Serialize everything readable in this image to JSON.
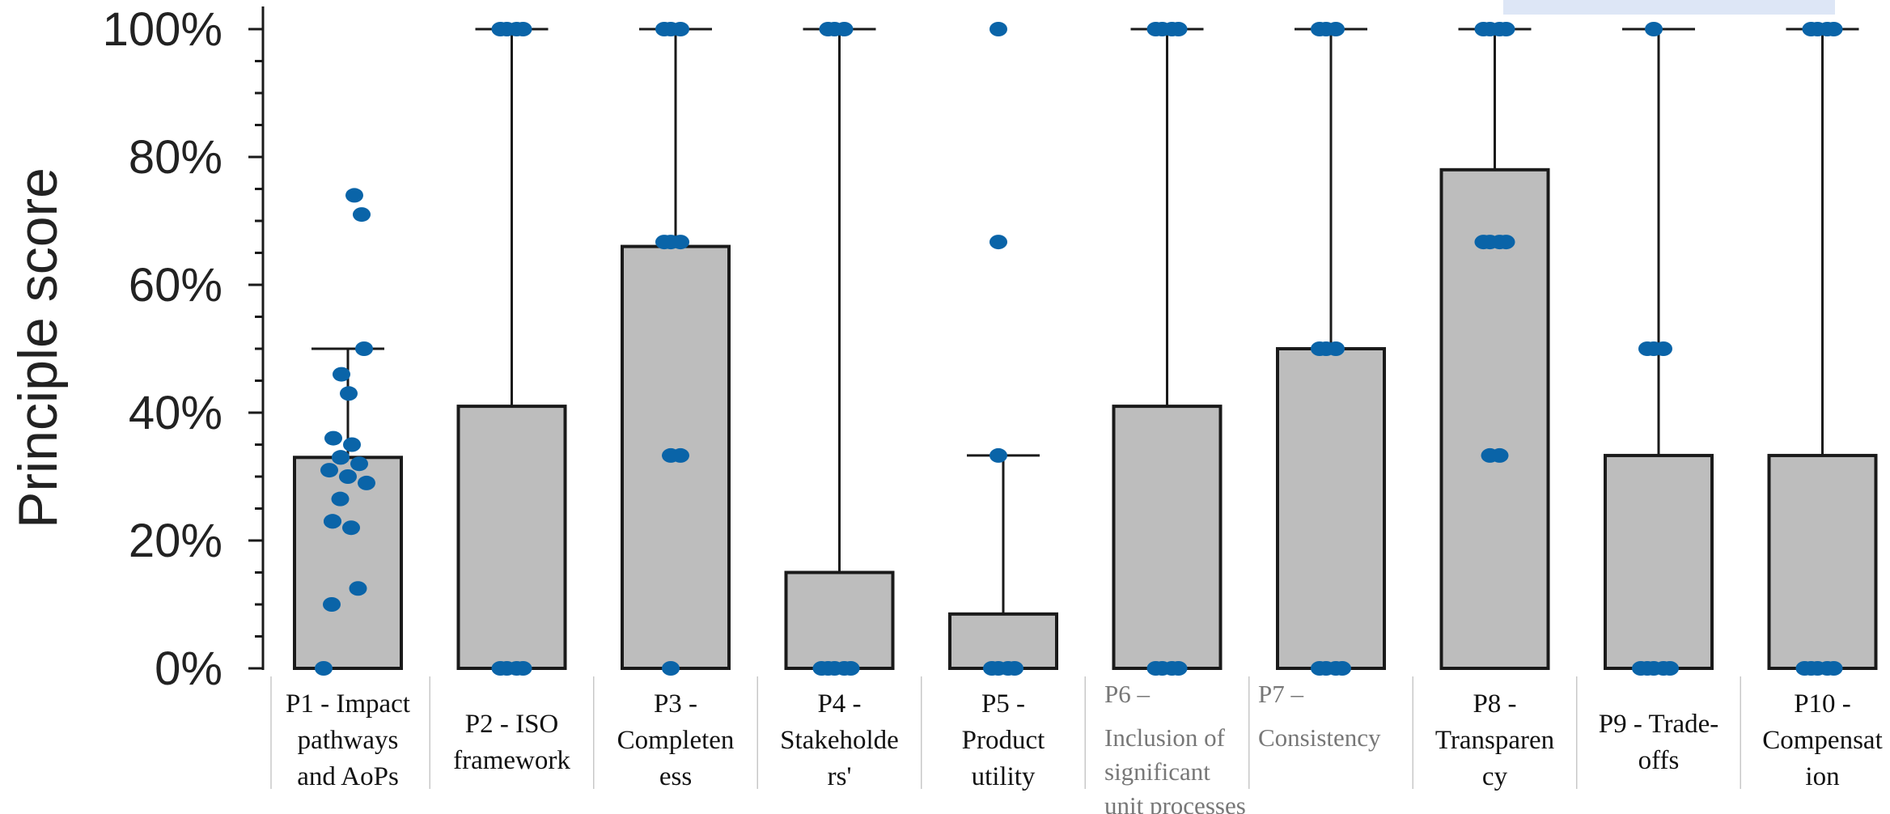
{
  "chart_data": {
    "type": "box",
    "ylabel": "Principle score",
    "yticks": [
      "0%",
      "20%",
      "40%",
      "60%",
      "80%",
      "100%"
    ],
    "ylim": [
      0,
      100
    ],
    "colors": {
      "box_fill": "#bdbdbd",
      "points": "#0a64a8",
      "highlight": "#dde6f6"
    },
    "categories": [
      {
        "lines": [
          "P1 - Impact",
          "pathways",
          "and AoPs"
        ],
        "muted": false,
        "bar": 33,
        "whisker": 50,
        "points": [
          0,
          10,
          12.5,
          22,
          23,
          23,
          26.5,
          29,
          30,
          31,
          32,
          33,
          33,
          35,
          36,
          43,
          46,
          50,
          71,
          74
        ]
      },
      {
        "lines": [
          "P2 - ISO",
          "framework"
        ],
        "muted": false,
        "bar": 41,
        "whisker": 100,
        "points": [
          0,
          0,
          0,
          0,
          100,
          100,
          100,
          100
        ]
      },
      {
        "lines": [
          "P3 -",
          "Completen",
          "ess"
        ],
        "muted": false,
        "bar": 66,
        "whisker": 100,
        "points": [
          0,
          33.3,
          33.3,
          66.7,
          66.7,
          66.7,
          100,
          100,
          100
        ]
      },
      {
        "lines": [
          "P4 -",
          "Stakeholde",
          "rs'"
        ],
        "muted": false,
        "bar": 15,
        "whisker": 100,
        "points": [
          0,
          0,
          0,
          0,
          0,
          100,
          100,
          100
        ]
      },
      {
        "lines": [
          "P5 -",
          "Product",
          "utility"
        ],
        "muted": false,
        "bar": 8.5,
        "whisker": 33.3,
        "points": [
          0,
          0,
          0,
          0,
          33.3,
          66.7,
          100
        ]
      },
      {
        "lines": [
          "P6 –",
          "Inclusion of",
          "significant",
          "unit processes"
        ],
        "muted": true,
        "bar": 41,
        "whisker": 100,
        "points": [
          0,
          0,
          0,
          0,
          100,
          100,
          100,
          100
        ]
      },
      {
        "lines": [
          "P7 –",
          "Consistency"
        ],
        "muted": true,
        "bar": 50,
        "whisker": 100,
        "points": [
          0,
          0,
          0,
          0,
          50,
          50,
          50,
          100,
          100,
          100
        ]
      },
      {
        "lines": [
          "P8 -",
          "Transparen",
          "cy"
        ],
        "muted": false,
        "bar": 78,
        "whisker": 100,
        "points": [
          33.3,
          33.3,
          66.7,
          66.7,
          66.7,
          66.7,
          100,
          100,
          100,
          100
        ]
      },
      {
        "lines": [
          "P9 - Trade-",
          "offs"
        ],
        "muted": false,
        "bar": 33.3,
        "whisker": 100,
        "points": [
          0,
          0,
          0,
          0,
          0,
          50,
          50,
          50,
          100
        ]
      },
      {
        "lines": [
          "P10 -",
          "Compensat",
          "ion"
        ],
        "muted": false,
        "bar": 33.3,
        "whisker": 100,
        "points": [
          0,
          0,
          0,
          0,
          0,
          100,
          100,
          100,
          100
        ]
      }
    ]
  }
}
